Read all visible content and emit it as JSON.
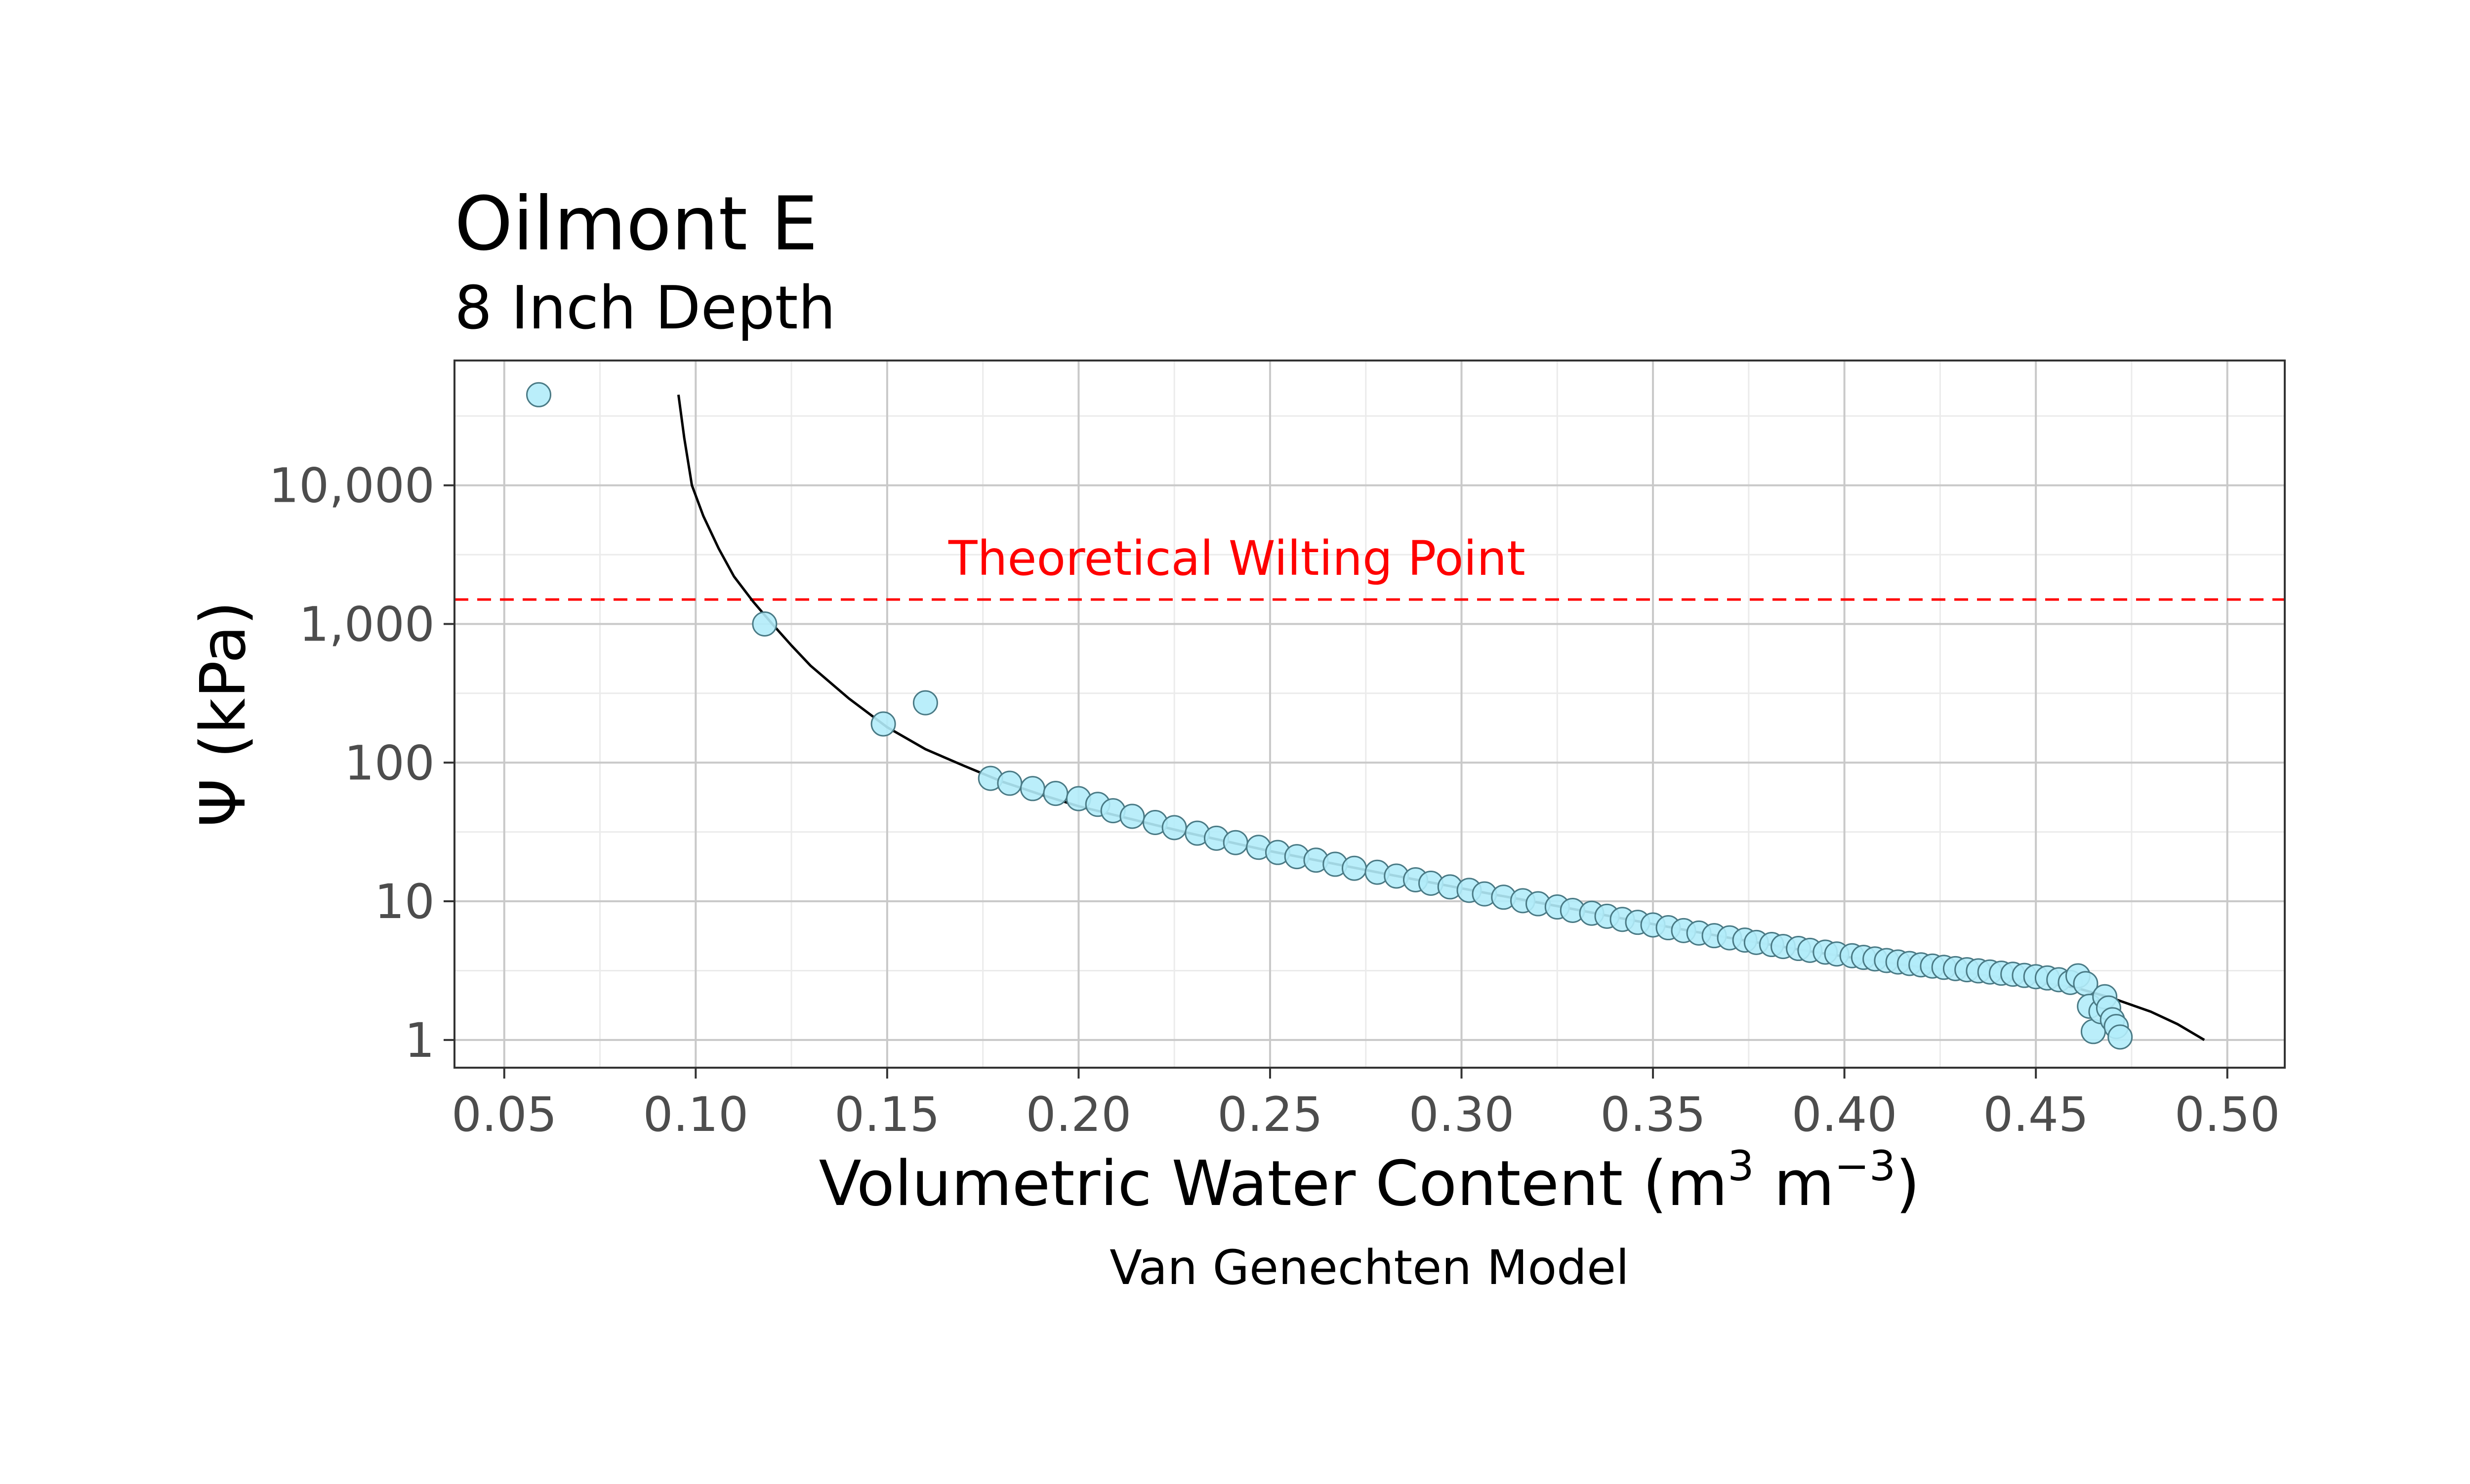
{
  "chart_data": {
    "type": "scatter",
    "title": "Oilmont E",
    "subtitle": "8 Inch Depth",
    "xlabel": {
      "base": "Volumetric Water Content (m",
      "sup1": "3",
      "mid": " m",
      "sup2": "−3",
      "end": ")"
    },
    "ylabel": "Ψ (kPa)",
    "caption": "Van Genechten Model",
    "xlim": [
      0.037,
      0.515
    ],
    "ylim_log10": [
      -0.2,
      4.9
    ],
    "y_scale": "log10",
    "grid": true,
    "x_ticks": [
      {
        "value": 0.05,
        "label": "0.05"
      },
      {
        "value": 0.1,
        "label": "0.10"
      },
      {
        "value": 0.15,
        "label": "0.15"
      },
      {
        "value": 0.2,
        "label": "0.20"
      },
      {
        "value": 0.25,
        "label": "0.25"
      },
      {
        "value": 0.3,
        "label": "0.30"
      },
      {
        "value": 0.35,
        "label": "0.35"
      },
      {
        "value": 0.4,
        "label": "0.40"
      },
      {
        "value": 0.45,
        "label": "0.45"
      },
      {
        "value": 0.5,
        "label": "0.50"
      }
    ],
    "y_ticks": [
      {
        "value": 1,
        "label": "1"
      },
      {
        "value": 10,
        "label": "10"
      },
      {
        "value": 100,
        "label": "100"
      },
      {
        "value": 1000,
        "label": "1,000"
      },
      {
        "value": 10000,
        "label": "10,000"
      }
    ],
    "reference_line": {
      "y": 1500,
      "label": "Theoretical Wilting Point",
      "color": "#ff0000",
      "dash": true
    },
    "colors": {
      "point_fill": "#b3ecfa",
      "point_stroke": "#4a7a85",
      "curve": "#000000",
      "grid_major": "#c9c9c9",
      "grid_minor": "#ebebeb",
      "panel_border": "#333333"
    },
    "series": [
      {
        "kind": "points",
        "points": [
          [
            0.059,
            45000
          ],
          [
            0.118,
            1000
          ],
          [
            0.149,
            190
          ],
          [
            0.16,
            270
          ],
          [
            0.177,
            77
          ],
          [
            0.182,
            71
          ],
          [
            0.188,
            65
          ],
          [
            0.194,
            60
          ],
          [
            0.2,
            55
          ],
          [
            0.205,
            50
          ],
          [
            0.209,
            45
          ],
          [
            0.214,
            41
          ],
          [
            0.22,
            37
          ],
          [
            0.225,
            34
          ],
          [
            0.231,
            31
          ],
          [
            0.236,
            28.5
          ],
          [
            0.241,
            26.5
          ],
          [
            0.247,
            24.5
          ],
          [
            0.252,
            22.5
          ],
          [
            0.257,
            21
          ],
          [
            0.262,
            19.8
          ],
          [
            0.267,
            18.5
          ],
          [
            0.272,
            17.3
          ],
          [
            0.278,
            16.2
          ],
          [
            0.283,
            15.2
          ],
          [
            0.288,
            14.3
          ],
          [
            0.292,
            13.5
          ],
          [
            0.297,
            12.7
          ],
          [
            0.302,
            12
          ],
          [
            0.306,
            11.3
          ],
          [
            0.311,
            10.7
          ],
          [
            0.316,
            10.1
          ],
          [
            0.32,
            9.6
          ],
          [
            0.325,
            9.1
          ],
          [
            0.329,
            8.6
          ],
          [
            0.334,
            8.2
          ],
          [
            0.338,
            7.8
          ],
          [
            0.342,
            7.4
          ],
          [
            0.346,
            7.05
          ],
          [
            0.35,
            6.75
          ],
          [
            0.354,
            6.45
          ],
          [
            0.358,
            6.15
          ],
          [
            0.362,
            5.9
          ],
          [
            0.366,
            5.65
          ],
          [
            0.37,
            5.45
          ],
          [
            0.374,
            5.25
          ],
          [
            0.377,
            5.05
          ],
          [
            0.381,
            4.88
          ],
          [
            0.384,
            4.72
          ],
          [
            0.388,
            4.57
          ],
          [
            0.391,
            4.43
          ],
          [
            0.395,
            4.3
          ],
          [
            0.398,
            4.17
          ],
          [
            0.402,
            4.05
          ],
          [
            0.405,
            3.94
          ],
          [
            0.408,
            3.84
          ],
          [
            0.411,
            3.74
          ],
          [
            0.414,
            3.65
          ],
          [
            0.417,
            3.56
          ],
          [
            0.42,
            3.48
          ],
          [
            0.423,
            3.41
          ],
          [
            0.426,
            3.34
          ],
          [
            0.429,
            3.27
          ],
          [
            0.432,
            3.21
          ],
          [
            0.435,
            3.15
          ],
          [
            0.438,
            3.09
          ],
          [
            0.441,
            3.03
          ],
          [
            0.444,
            2.98
          ],
          [
            0.447,
            2.92
          ],
          [
            0.45,
            2.86
          ],
          [
            0.453,
            2.8
          ],
          [
            0.456,
            2.72
          ],
          [
            0.459,
            2.6
          ],
          [
            0.461,
            2.9
          ],
          [
            0.463,
            2.55
          ],
          [
            0.464,
            1.75
          ],
          [
            0.465,
            1.15
          ],
          [
            0.467,
            1.6
          ],
          [
            0.468,
            2.05
          ],
          [
            0.469,
            1.7
          ],
          [
            0.47,
            1.4
          ],
          [
            0.471,
            1.25
          ],
          [
            0.472,
            1.05
          ]
        ]
      },
      {
        "kind": "line",
        "points": [
          [
            0.0955,
            45000
          ],
          [
            0.097,
            22000
          ],
          [
            0.099,
            10000
          ],
          [
            0.102,
            6000
          ],
          [
            0.106,
            3500
          ],
          [
            0.11,
            2200
          ],
          [
            0.115,
            1450
          ],
          [
            0.12,
            1000
          ],
          [
            0.125,
            700
          ],
          [
            0.13,
            500
          ],
          [
            0.14,
            290
          ],
          [
            0.15,
            180
          ],
          [
            0.16,
            125
          ],
          [
            0.17,
            95
          ],
          [
            0.18,
            73
          ],
          [
            0.19,
            59
          ],
          [
            0.2,
            48.5
          ],
          [
            0.21,
            41.5
          ],
          [
            0.22,
            35.5
          ],
          [
            0.23,
            30.5
          ],
          [
            0.24,
            26.5
          ],
          [
            0.25,
            23
          ],
          [
            0.26,
            20.3
          ],
          [
            0.27,
            17.9
          ],
          [
            0.28,
            15.8
          ],
          [
            0.29,
            14.0
          ],
          [
            0.3,
            12.4
          ],
          [
            0.31,
            11.0
          ],
          [
            0.32,
            9.8
          ],
          [
            0.33,
            8.7
          ],
          [
            0.34,
            7.7
          ],
          [
            0.35,
            6.85
          ],
          [
            0.36,
            6.1
          ],
          [
            0.37,
            5.45
          ],
          [
            0.38,
            4.9
          ],
          [
            0.39,
            4.4
          ],
          [
            0.4,
            4.0
          ],
          [
            0.41,
            3.65
          ],
          [
            0.42,
            3.35
          ],
          [
            0.43,
            3.1
          ],
          [
            0.44,
            2.85
          ],
          [
            0.45,
            2.62
          ],
          [
            0.46,
            2.4
          ],
          [
            0.47,
            2.0
          ],
          [
            0.48,
            1.6
          ],
          [
            0.487,
            1.3
          ],
          [
            0.494,
            1.0
          ]
        ]
      }
    ]
  }
}
